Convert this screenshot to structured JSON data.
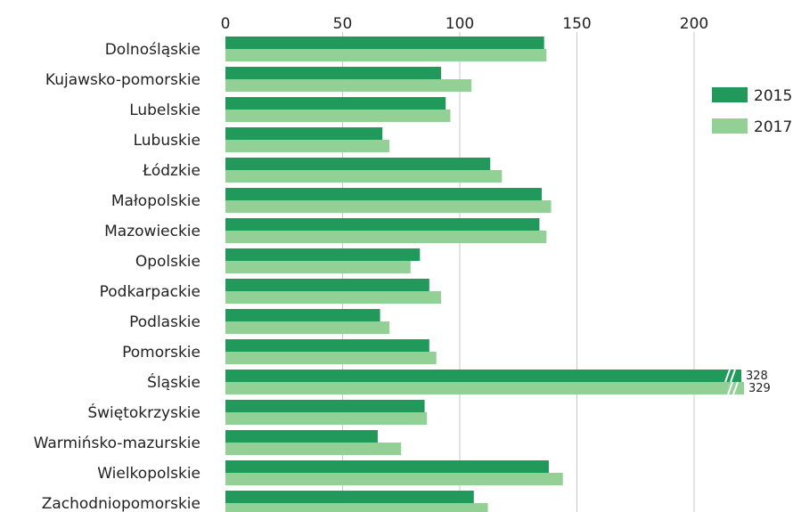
{
  "chart_data": {
    "type": "bar",
    "orientation": "horizontal",
    "categories": [
      "Dolnośląskie",
      "Kujawsko-pomorskie",
      "Lubelskie",
      "Lubuskie",
      "Łódzkie",
      "Małopolskie",
      "Mazowieckie",
      "Opolskie",
      "Podkarpackie",
      "Podlaskie",
      "Pomorskie",
      "Śląskie",
      "Świętokrzyskie",
      "Warmińsko-mazurskie",
      "Wielkopolskie",
      "Zachodniopomorskie"
    ],
    "series": [
      {
        "name": "2015",
        "color": "#21995a",
        "values": [
          136,
          92,
          94,
          67,
          113,
          135,
          134,
          83,
          87,
          66,
          87,
          328,
          85,
          65,
          138,
          106
        ]
      },
      {
        "name": "2017",
        "color": "#92d095",
        "values": [
          137,
          105,
          96,
          70,
          118,
          139,
          137,
          79,
          92,
          70,
          90,
          329,
          86,
          75,
          144,
          112
        ]
      }
    ],
    "xlim": [
      0,
      220
    ],
    "xticks": [
      "0",
      "50",
      "100",
      "150",
      "200"
    ],
    "axis_break": {
      "category": "Śląskie",
      "labels": [
        "328",
        "329"
      ]
    },
    "grid": true,
    "legend": {
      "position": "right",
      "labels": [
        "2015",
        "2017"
      ]
    }
  }
}
